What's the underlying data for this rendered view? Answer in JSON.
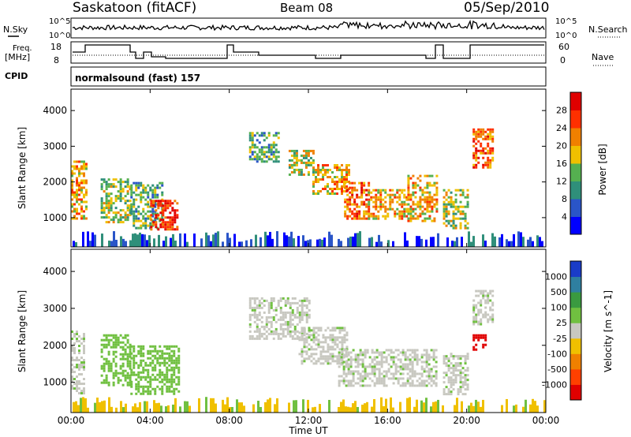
{
  "header": {
    "station": "Saskatoon (fitACF)",
    "beam": "Beam 08",
    "date": "05/Sep/2010"
  },
  "params": {
    "nsky_label": "N.Sky",
    "nsearch_label": "N.Search",
    "freq_label_top": "Freq.",
    "freq_label_bottom": "[MHz]",
    "nave_label": "Nave",
    "cpid_label": "CPID",
    "cpid_value": "normalsound (fast) 157",
    "noise_ticks": [
      "10^5",
      "10^0"
    ],
    "freq_ticks": [
      "18",
      "8"
    ],
    "nave_ticks": [
      "60",
      "0"
    ]
  },
  "xaxis": {
    "label": "Time UT",
    "ticks": [
      "00:00",
      "04:00",
      "08:00",
      "12:00",
      "16:00",
      "20:00",
      "00:00"
    ]
  },
  "power_panel": {
    "ylabel": "Slant Range [km]",
    "yticks": [
      "1000",
      "2000",
      "3000",
      "4000"
    ],
    "cbar_label": "Power [dB]",
    "cbar_ticks": [
      "4",
      "8",
      "12",
      "16",
      "20",
      "24",
      "28"
    ],
    "cbar_colors": [
      "#0000ff",
      "#2a55c8",
      "#2f8f7a",
      "#55b050",
      "#f0c000",
      "#f08000",
      "#ff3000",
      "#e00000"
    ]
  },
  "velocity_panel": {
    "ylabel": "Slant Range [km]",
    "yticks": [
      "1000",
      "2000",
      "3000",
      "4000"
    ],
    "cbar_label": "Velocity [m s^-1]",
    "cbar_ticks": [
      "1000",
      "500",
      "100",
      "25",
      "-25",
      "-100",
      "-500",
      "-1000"
    ],
    "cbar_colors": [
      "#1a3cc8",
      "#2f7fa0",
      "#3a9a40",
      "#70c040",
      "#c8c8c0",
      "#f0c000",
      "#f08000",
      "#ff4000",
      "#e00000"
    ]
  },
  "chart_data": {
    "type": "heatmap",
    "x_range_hours": [
      0,
      24
    ],
    "y_range_km": [
      180,
      4600
    ],
    "power_blobs": [
      {
        "t0": 0.0,
        "t1": 0.8,
        "r0": 1000,
        "r1": 2600,
        "level": 20
      },
      {
        "t0": 1.5,
        "t1": 3.0,
        "r0": 900,
        "r1": 2100,
        "level": 16
      },
      {
        "t0": 3.0,
        "t1": 4.6,
        "r0": 700,
        "r1": 2000,
        "level": 12
      },
      {
        "t0": 4.0,
        "t1": 5.4,
        "r0": 700,
        "r1": 1500,
        "level": 28
      },
      {
        "t0": 9.0,
        "t1": 10.5,
        "r0": 2600,
        "r1": 3400,
        "level": 10
      },
      {
        "t0": 11.0,
        "t1": 12.2,
        "r0": 2200,
        "r1": 2900,
        "level": 16
      },
      {
        "t0": 12.2,
        "t1": 14.0,
        "r0": 1700,
        "r1": 2500,
        "level": 20
      },
      {
        "t0": 13.8,
        "t1": 15.0,
        "r0": 1000,
        "r1": 2000,
        "level": 22
      },
      {
        "t0": 15.0,
        "t1": 17.0,
        "r0": 1000,
        "r1": 1800,
        "level": 20
      },
      {
        "t0": 17.0,
        "t1": 18.5,
        "r0": 900,
        "r1": 2200,
        "level": 20
      },
      {
        "t0": 18.8,
        "t1": 20.0,
        "r0": 700,
        "r1": 1800,
        "level": 16
      },
      {
        "t0": 20.3,
        "t1": 21.3,
        "r0": 2400,
        "r1": 3500,
        "level": 24
      }
    ],
    "velocity_blobs": [
      {
        "t0": 0.0,
        "t1": 0.6,
        "r0": 700,
        "r1": 2400,
        "level": "25"
      },
      {
        "t0": 1.5,
        "t1": 3.0,
        "r0": 900,
        "r1": 2300,
        "level": "100"
      },
      {
        "t0": 3.0,
        "t1": 5.5,
        "r0": 700,
        "r1": 2000,
        "level": "100"
      },
      {
        "t0": 9.0,
        "t1": 12.0,
        "r0": 2200,
        "r1": 3300,
        "level": "25"
      },
      {
        "t0": 11.5,
        "t1": 14.0,
        "r0": 1500,
        "r1": 2500,
        "level": "25"
      },
      {
        "t0": 13.5,
        "t1": 18.5,
        "r0": 900,
        "r1": 1900,
        "level": "25"
      },
      {
        "t0": 18.8,
        "t1": 20.0,
        "r0": 700,
        "r1": 1800,
        "level": "25"
      },
      {
        "t0": 20.3,
        "t1": 21.3,
        "r0": 2600,
        "r1": 3500,
        "level": "25"
      },
      {
        "t0": 20.3,
        "t1": 20.9,
        "r0": 1900,
        "r1": 2300,
        "level": "-1000"
      }
    ]
  }
}
